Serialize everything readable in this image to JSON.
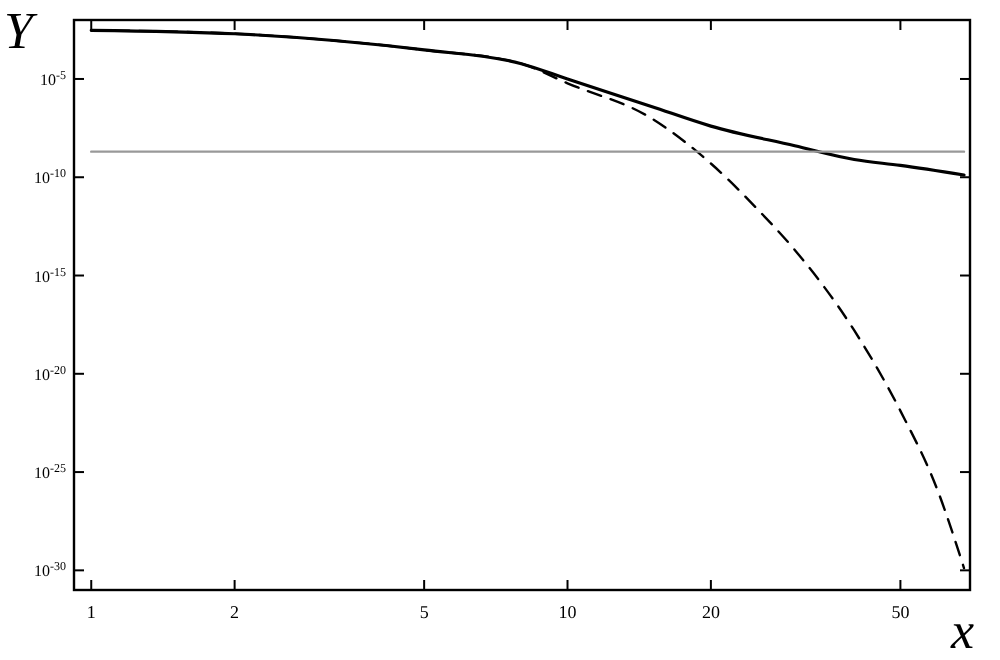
{
  "chart_data": {
    "type": "line",
    "xlabel": "x",
    "ylabel": "Y",
    "log": "xy",
    "grid": false,
    "marker": "none",
    "xlim": [
      0.92,
      70
    ],
    "ylim": [
      1e-31,
      0.01
    ],
    "xticks": [
      1,
      2,
      5,
      10,
      20,
      50
    ],
    "yticks": [
      {
        "value": 1e-05,
        "label": "10$^{-5}$"
      },
      {
        "value": 1e-10,
        "label": "10$^{-10}$"
      },
      {
        "value": 1e-15,
        "label": "10$^{-15}$"
      },
      {
        "value": 1e-20,
        "label": "10$^{-20}$"
      },
      {
        "value": 1e-25,
        "label": "10$^{-25}$"
      },
      {
        "value": 1e-30,
        "label": "10$^{-30}$"
      }
    ],
    "series": [
      {
        "color": "#000000",
        "line_style": "solid",
        "x": [
          1,
          2,
          5,
          8,
          10,
          15,
          20,
          30,
          40,
          50,
          68
        ],
        "values": [
          0.003,
          0.002,
          0.0003,
          6e-05,
          1e-05,
          4e-07,
          4e-08,
          4e-09,
          8e-10,
          4e-10,
          1.3e-10
        ]
      },
      {
        "color": "#000000",
        "line_style": "dashed",
        "x": [
          1,
          2,
          5,
          8,
          10,
          15,
          20,
          25,
          30,
          40,
          50,
          60,
          68
        ],
        "values": [
          0.003,
          0.002,
          0.0003,
          6e-05,
          6e-06,
          1e-07,
          5e-10,
          2.5e-12,
          2e-14,
          1.6e-18,
          1.3e-22,
          1e-26,
          1.3e-30
        ]
      },
      {
        "color": "#999999",
        "line_style": "solid",
        "x": [
          1,
          68
        ],
        "values": [
          2e-09,
          2e-09
        ]
      }
    ]
  }
}
